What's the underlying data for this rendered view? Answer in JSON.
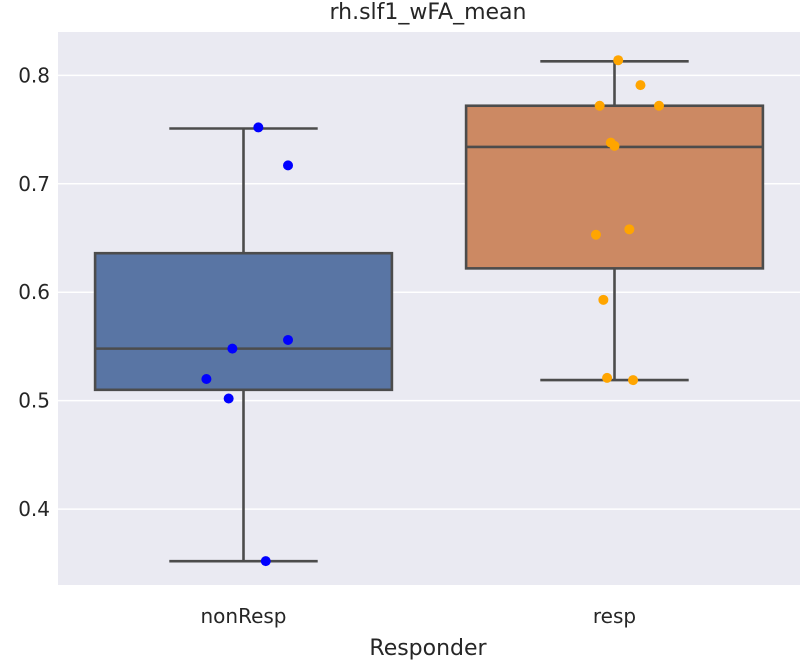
{
  "chart_data": {
    "type": "box",
    "title": "rh.slf1_wFA_mean",
    "xlabel": "Responder",
    "ylabel": "",
    "ylim": [
      0.33,
      0.84
    ],
    "yticks": [
      0.4,
      0.5,
      0.6,
      0.7,
      0.8
    ],
    "ytick_labels": [
      "0.4",
      "0.5",
      "0.6",
      "0.7",
      "0.8"
    ],
    "background": "#eaeaf2",
    "grid": true,
    "categories": [
      "nonResp",
      "resp"
    ],
    "boxes": [
      {
        "category": "nonResp",
        "color": "#5975a4",
        "point_color": "#0000ff",
        "whisker_low": 0.352,
        "q1": 0.51,
        "median": 0.548,
        "q3": 0.636,
        "whisker_high": 0.751,
        "points": [
          {
            "x_jitter": 0.04,
            "y": 0.752
          },
          {
            "x_jitter": 0.12,
            "y": 0.717
          },
          {
            "x_jitter": 0.12,
            "y": 0.556
          },
          {
            "x_jitter": -0.03,
            "y": 0.548
          },
          {
            "x_jitter": -0.1,
            "y": 0.52
          },
          {
            "x_jitter": -0.04,
            "y": 0.502
          },
          {
            "x_jitter": 0.06,
            "y": 0.352
          }
        ]
      },
      {
        "category": "resp",
        "color": "#cc8963",
        "point_color": "#ffa500",
        "whisker_low": 0.519,
        "q1": 0.622,
        "median": 0.734,
        "q3": 0.772,
        "whisker_high": 0.813,
        "points": [
          {
            "x_jitter": 0.01,
            "y": 0.814
          },
          {
            "x_jitter": 0.07,
            "y": 0.791
          },
          {
            "x_jitter": -0.04,
            "y": 0.772
          },
          {
            "x_jitter": 0.12,
            "y": 0.772
          },
          {
            "x_jitter": -0.01,
            "y": 0.738
          },
          {
            "x_jitter": 0.0,
            "y": 0.735
          },
          {
            "x_jitter": 0.04,
            "y": 0.658
          },
          {
            "x_jitter": -0.05,
            "y": 0.653
          },
          {
            "x_jitter": -0.03,
            "y": 0.593
          },
          {
            "x_jitter": -0.02,
            "y": 0.521
          },
          {
            "x_jitter": 0.05,
            "y": 0.519
          }
        ]
      }
    ]
  }
}
